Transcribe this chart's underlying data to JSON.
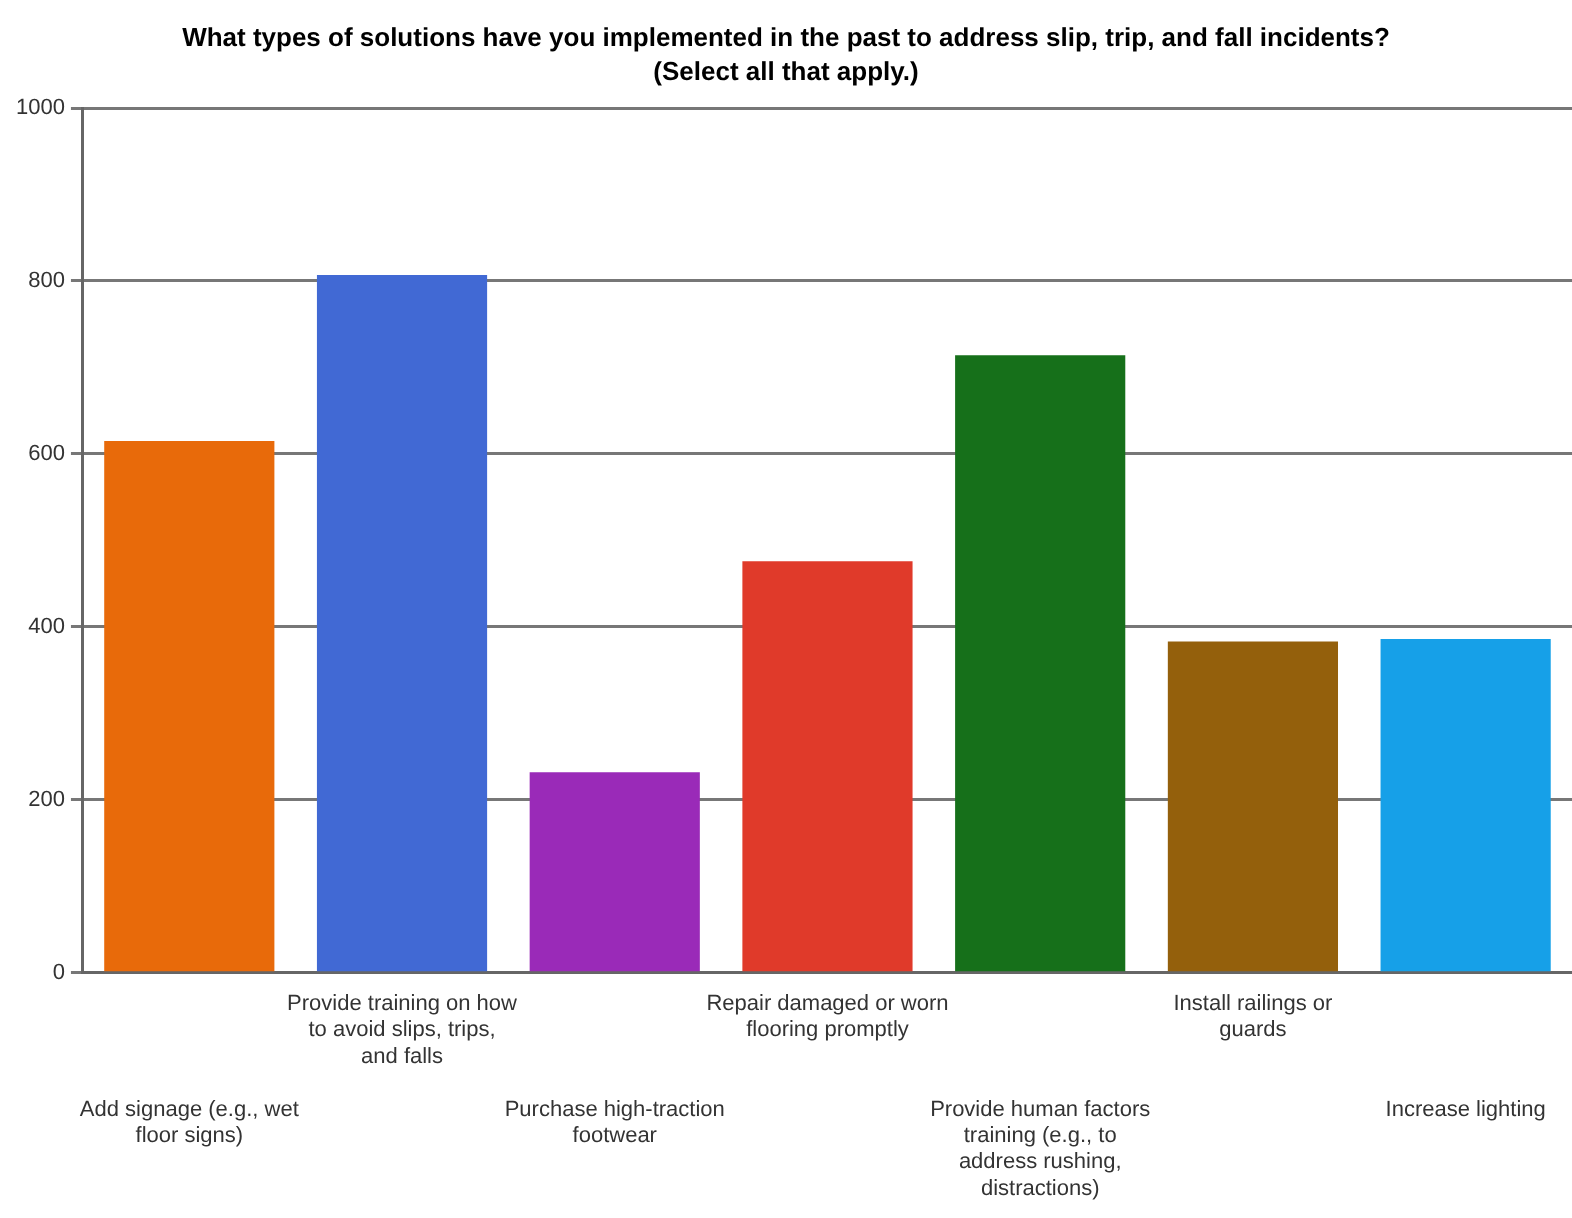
{
  "chart_data": {
    "type": "bar",
    "title": "What types of solutions have you implemented in the past to address slip, trip, and fall incidents? (Select all that apply.)",
    "categories": [
      "Add signage (e.g., wet floor signs)",
      "Provide training on how to avoid slips, trips, and falls",
      "Purchase high-traction footwear",
      "Repair damaged or worn flooring promptly",
      "Provide human factors training (e.g., to address rushing, distractions)",
      "Install railings or guards",
      "Increase lighting"
    ],
    "values": [
      615,
      807,
      232,
      476,
      714,
      383,
      386
    ],
    "colors": [
      "#e86a0a",
      "#4169d4",
      "#9a2ab8",
      "#e03a2a",
      "#16701a",
      "#94600c",
      "#16a0e8"
    ],
    "ylim": [
      0,
      1000
    ],
    "yticks": [
      0,
      200,
      400,
      600,
      800,
      1000
    ],
    "grid": "y"
  }
}
